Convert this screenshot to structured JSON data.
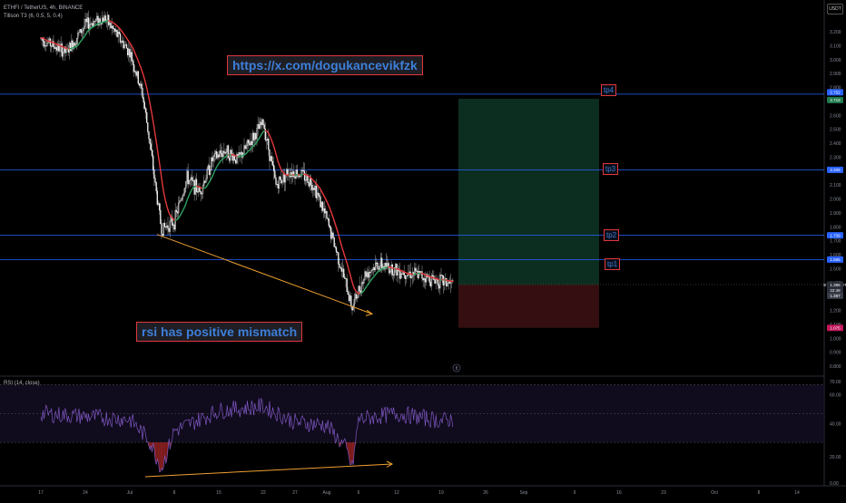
{
  "header": {
    "symbol_line": "ETHFI / TetherUS, 4h, BINANCE",
    "indicator_line": "Tillson T3 (6, 0.5, 5, 0.4)",
    "currency_badge": "USDT"
  },
  "annotations": {
    "url_text": "https://x.com/dogukancevikfzk",
    "rsi_note": "rsi has positive mismatch"
  },
  "targets": [
    {
      "label": "tp4",
      "price": 2.752
    },
    {
      "label": "tp3",
      "price": 2.209
    },
    {
      "label": "tp2",
      "price": 1.739
    },
    {
      "label": "tp1",
      "price": 1.565
    }
  ],
  "price_tags": [
    {
      "text": "2.752",
      "price": 2.765,
      "color": "#2962ff"
    },
    {
      "text": "2.719",
      "price": 2.71,
      "color": "#1f7a4d"
    },
    {
      "text": "2.209",
      "price": 2.209,
      "color": "#2962ff"
    },
    {
      "text": "1.739",
      "price": 1.739,
      "color": "#2962ff"
    },
    {
      "text": "1.565",
      "price": 1.565,
      "color": "#2962ff"
    },
    {
      "text": "ETHFIUSDT",
      "price": 1.385,
      "color": "#2a2e39"
    },
    {
      "text": "1.385",
      "price": 1.385,
      "color": "#2a2e39"
    },
    {
      "text": "22:49",
      "price": 1.345,
      "color": "#2a2e39"
    },
    {
      "text": "1.387",
      "price": 1.305,
      "color": "#3a3e49"
    },
    {
      "text": "1.075",
      "price": 1.075,
      "color": "#c2185b"
    }
  ],
  "rsi": {
    "title": "RSI (14, close)",
    "ticks": [
      "70.00",
      "60.00",
      "40.00",
      "20.00",
      "0.00"
    ]
  },
  "colors": {
    "accent_blue": "#3d7fd9",
    "callout_border": "#e0383b",
    "t3_up": "#2e9e5e",
    "t3_down": "#e0383b",
    "trend_arrow": "#f0a030",
    "rsi_line": "#7e57c2"
  },
  "chart_data": [
    {
      "type": "candlestick",
      "title": "ETHFI / TetherUS, 4h, BINANCE",
      "ylabel": "USDT",
      "ylim": [
        0.8,
        3.3
      ],
      "y_ticks": [
        "3.200",
        "3.100",
        "3.000",
        "2.900",
        "2.800",
        "2.700",
        "2.600",
        "2.500",
        "2.400",
        "2.300",
        "2.200",
        "2.100",
        "2.000",
        "1.900",
        "1.800",
        "1.700",
        "1.600",
        "1.500",
        "1.400",
        "1.300",
        "1.200",
        "1.100",
        "1.000",
        "0.900",
        "0.800"
      ],
      "x_ticks": [
        "17",
        "24",
        "Jul",
        "8",
        "15",
        "22",
        "27",
        "Aug",
        "6",
        "12",
        "19",
        "26",
        "Sep",
        "9",
        "16",
        "23",
        "Oct",
        "8",
        "14"
      ],
      "price_path": [
        {
          "x": "Jun 17",
          "y": 3.15
        },
        {
          "x": "Jun 21",
          "y": 3.05
        },
        {
          "x": "Jun 24",
          "y": 3.25
        },
        {
          "x": "Jun 27",
          "y": 3.3
        },
        {
          "x": "Jul 1",
          "y": 3.05
        },
        {
          "x": "Jul 3",
          "y": 2.75
        },
        {
          "x": "Jul 4",
          "y": 2.45
        },
        {
          "x": "Jul 5",
          "y": 2.1
        },
        {
          "x": "Jul 6",
          "y": 1.78
        },
        {
          "x": "Jul 8",
          "y": 1.84
        },
        {
          "x": "Jul 10",
          "y": 2.15
        },
        {
          "x": "Jul 12",
          "y": 2.05
        },
        {
          "x": "Jul 14",
          "y": 2.28
        },
        {
          "x": "Jul 16",
          "y": 2.35
        },
        {
          "x": "Jul 18",
          "y": 2.28
        },
        {
          "x": "Jul 21",
          "y": 2.48
        },
        {
          "x": "Jul 22",
          "y": 2.55
        },
        {
          "x": "Jul 24",
          "y": 2.1
        },
        {
          "x": "Jul 26",
          "y": 2.2
        },
        {
          "x": "Jul 28",
          "y": 2.18
        },
        {
          "x": "Jul 30",
          "y": 2.1
        },
        {
          "x": "Aug 1",
          "y": 1.85
        },
        {
          "x": "Aug 3",
          "y": 1.55
        },
        {
          "x": "Aug 5",
          "y": 1.22
        },
        {
          "x": "Aug 7",
          "y": 1.46
        },
        {
          "x": "Aug 9",
          "y": 1.53
        },
        {
          "x": "Aug 12",
          "y": 1.49
        },
        {
          "x": "Aug 15",
          "y": 1.46
        },
        {
          "x": "Aug 18",
          "y": 1.42
        },
        {
          "x": "Aug 21",
          "y": 1.385
        }
      ],
      "long_position": {
        "entry": 1.385,
        "target": 2.719,
        "stop": 1.075
      }
    },
    {
      "type": "line",
      "title": "RSI (14, close)",
      "ylim": [
        0,
        70
      ],
      "y_ticks": [
        "70.00",
        "60.00",
        "40.00",
        "20.00",
        "0.00"
      ],
      "x": [
        "Jun 17",
        "Jun 24",
        "Jul 1",
        "Jul 4",
        "Jul 6",
        "Jul 8",
        "Jul 15",
        "Jul 22",
        "Jul 27",
        "Aug 1",
        "Aug 4",
        "Aug 5",
        "Aug 6",
        "Aug 12",
        "Aug 19",
        "Aug 21"
      ],
      "values": [
        50,
        48,
        46,
        32,
        12,
        38,
        52,
        55,
        44,
        42,
        26,
        12,
        46,
        50,
        45,
        46
      ]
    }
  ]
}
